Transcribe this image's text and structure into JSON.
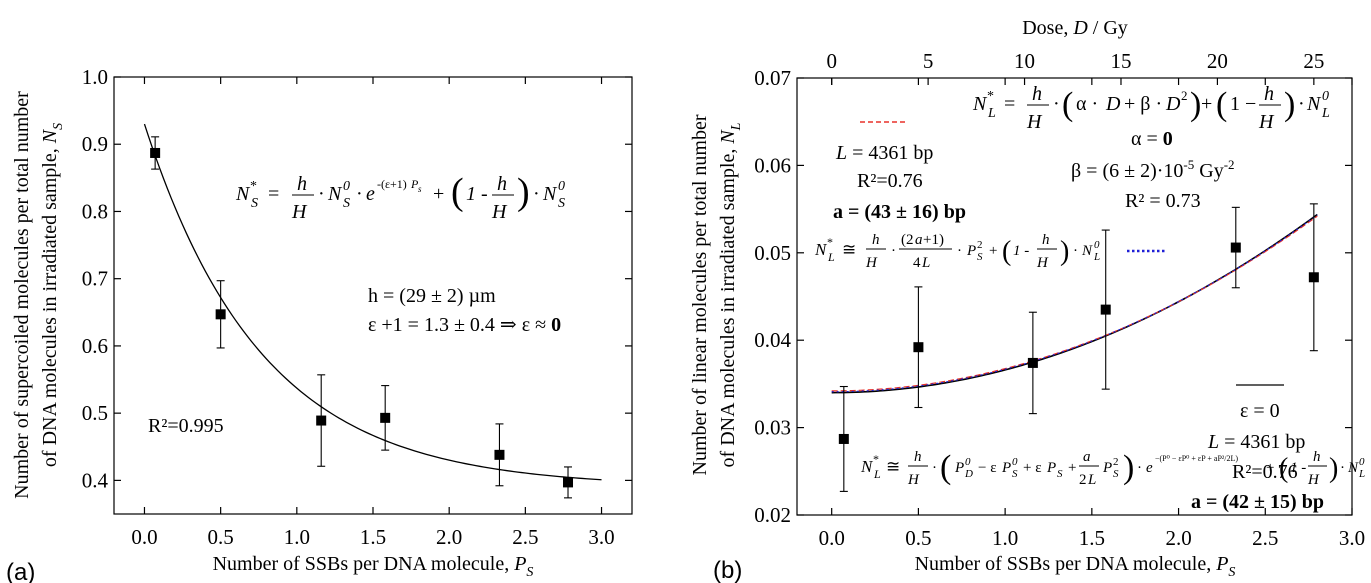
{
  "chart_data": [
    {
      "panel_label": "(a)",
      "type": "scatter",
      "xlabel": "Number of SSBs per DNA molecule, P_S",
      "ylabel_line1": "Number of supercoiled molecules per total number",
      "ylabel_line2": "of DNA molecules in irradiated sample, N_S",
      "xlim": [
        -0.2,
        3.2
      ],
      "ylim": [
        0.35,
        1.0
      ],
      "xticks": [
        0.0,
        0.5,
        1.0,
        1.5,
        2.0,
        2.5,
        3.0
      ],
      "xtick_labels": [
        "0.0",
        "0.5",
        "1.0",
        "1.5",
        "2.0",
        "2.5",
        "3.0"
      ],
      "yticks": [
        0.4,
        0.5,
        0.6,
        0.7,
        0.8,
        0.9,
        1.0
      ],
      "ytick_labels": [
        "0.4",
        "0.5",
        "0.6",
        "0.7",
        "0.8",
        "0.9",
        "1.0"
      ],
      "points": [
        {
          "x": 0.07,
          "y": 0.887,
          "err": 0.024
        },
        {
          "x": 0.5,
          "y": 0.647,
          "err": 0.05
        },
        {
          "x": 1.16,
          "y": 0.489,
          "err": 0.068
        },
        {
          "x": 1.58,
          "y": 0.493,
          "err": 0.048
        },
        {
          "x": 2.33,
          "y": 0.438,
          "err": 0.046
        },
        {
          "x": 2.78,
          "y": 0.397,
          "err": 0.023
        }
      ],
      "fit": {
        "model": "exp",
        "x_from": 0.0,
        "x_to": 3.0,
        "A": 0.39,
        "B": 0.54,
        "k": 1.3
      },
      "annotations": {
        "equation": "N*_S = (h/H)·N⁰_S·e^(−(ε+1)P_s) + (1 − h/H)·N⁰_S",
        "h": "h = (29 ± 2) µm",
        "eps": "ε +1 = 1.3 ± 0.4 ⇒ ε ≈",
        "eps_bold": "0",
        "r2": "R²=0.995"
      }
    },
    {
      "panel_label": "(b)",
      "type": "scatter",
      "xlabel": "Number of SSBs per DNA molecule, P_S",
      "top_xlabel": "Dose, D / Gy",
      "ylabel_line1": "Number of linear molecules per total number",
      "ylabel_line2": "of DNA molecules in irradiated sample, N_L",
      "xlim": [
        -0.2,
        3.0
      ],
      "ylim": [
        0.02,
        0.07
      ],
      "xticks": [
        0.0,
        0.5,
        1.0,
        1.5,
        2.0,
        2.5,
        3.0
      ],
      "xtick_labels": [
        "0.0",
        "0.5",
        "1.0",
        "1.5",
        "2.0",
        "2.5",
        "3.0"
      ],
      "top_xticks": [
        0,
        5,
        10,
        15,
        20,
        25
      ],
      "top_xtick_labels": [
        "0",
        "5",
        "10",
        "15",
        "20",
        "25"
      ],
      "yticks": [
        0.02,
        0.03,
        0.04,
        0.05,
        0.06,
        0.07
      ],
      "ytick_labels": [
        "0.02",
        "0.03",
        "0.04",
        "0.05",
        "0.06",
        "0.07"
      ],
      "points": [
        {
          "x": 0.07,
          "y": 0.0287,
          "err": 0.006
        },
        {
          "x": 0.5,
          "y": 0.0392,
          "err": 0.0069
        },
        {
          "x": 1.16,
          "y": 0.0374,
          "err": 0.0058
        },
        {
          "x": 1.58,
          "y": 0.0435,
          "err": 0.0091
        },
        {
          "x": 2.33,
          "y": 0.0506,
          "err": 0.0046
        },
        {
          "x": 2.78,
          "y": 0.0472,
          "err": 0.0084
        }
      ],
      "series": [
        {
          "style": "solid",
          "color": "#000000",
          "a": 0.034,
          "b": 0.0026
        },
        {
          "style": "dash",
          "color": "#e8312a",
          "a": 0.0342,
          "b": 0.00255
        },
        {
          "style": "dot",
          "color": "#1f1fd6",
          "a": 0.0341,
          "b": 0.00258
        }
      ],
      "annotations": {
        "red_L": "L = 4361 bp",
        "red_R2": "R²=0.76",
        "red_a": "a = (43 ± 16) bp",
        "top_eq": "N*_L = (h/H)·(α·D + β·D²) + (1 − h/H)·N⁰_L",
        "alpha": "α = 0",
        "beta": "β = (6 ± 2)·10⁻⁵ Gy⁻²",
        "r2_blue": "R² = 0.73",
        "mid_eq": "N*_L ≅ (h/H)·((2a+1)/4L)·P_S² + (1 − h/H)·N⁰_L",
        "black_eps": "ε = 0",
        "black_L": "L = 4361 bp",
        "black_R2": "R²=0.76",
        "black_a": "a = (42 ± 15) bp",
        "bottom_eq": "N*_L ≅ (h/H)·(P⁰_D − εP⁰_S + εP_S + (a/2L)P_S²)·e^(...) + (1 − h/H)·N⁰_L"
      }
    }
  ],
  "colors": {
    "red": "#e8312a",
    "blue": "#1f1fd6",
    "black": "#000000"
  }
}
